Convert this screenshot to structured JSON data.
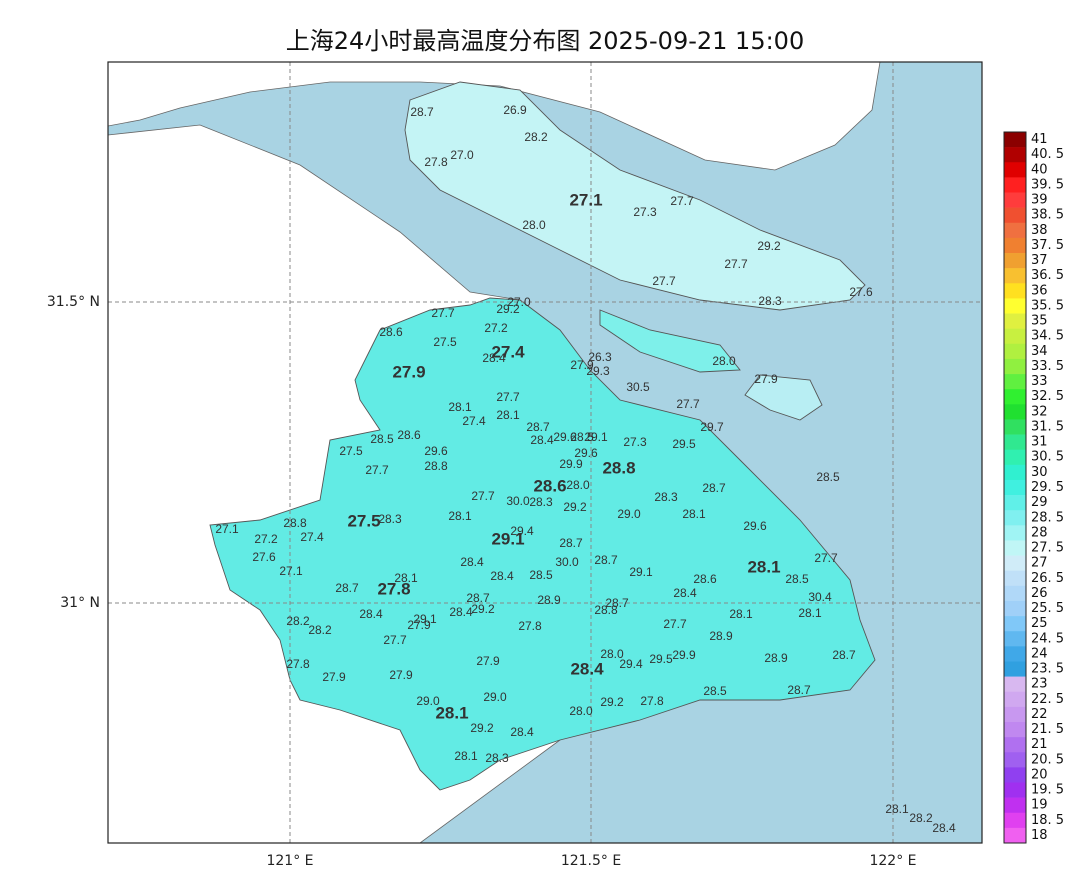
{
  "title": "上海24小时最高温度分布图 2025-09-21 15:00",
  "axes": {
    "x_labels": [
      "121° E",
      "121.5° E",
      "122° E"
    ],
    "y_labels": [
      "31.5° N",
      "31° N"
    ]
  },
  "stations": [
    "28.7",
    "26.9",
    "28.2",
    "27.0",
    "27.8",
    "27.1",
    "27.3",
    "27.7",
    "28.0",
    "29.2",
    "27.7",
    "27.7",
    "28.3",
    "27.6",
    "27.0",
    "29.2",
    "27.7",
    "28.6",
    "27.2",
    "27.5",
    "27.4",
    "28.4",
    "26.3",
    "27.9",
    "29.3",
    "28.0",
    "27.9",
    "30.5",
    "27.9",
    "27.7",
    "28.1",
    "28.1",
    "27.4",
    "27.7",
    "29.7",
    "28.7",
    "28.5",
    "28.6",
    "28.4",
    "29.6",
    "28.5",
    "29.1",
    "27.3",
    "29.5",
    "27.5",
    "29.6",
    "29.6",
    "29.9",
    "28.8",
    "27.7",
    "28.8",
    "28.0",
    "28.6",
    "28.5",
    "28.7",
    "27.7",
    "30.0",
    "28.3",
    "28.3",
    "29.2",
    "29.0",
    "28.1",
    "28.1",
    "27.5",
    "28.3",
    "27.1",
    "28.8",
    "29.6",
    "29.4",
    "27.2",
    "27.4",
    "29.1",
    "28.7",
    "27.6",
    "28.4",
    "28.7",
    "27.7",
    "30.0",
    "27.1",
    "28.1",
    "28.5",
    "28.4",
    "29.1",
    "28.6",
    "28.5",
    "28.1",
    "27.8",
    "28.7",
    "28.4",
    "30.4",
    "28.9",
    "28.7",
    "28.7",
    "29.2",
    "28.4",
    "28.8",
    "28.1",
    "28.1",
    "28.4",
    "29.1",
    "27.9",
    "28.2",
    "28.2",
    "27.8",
    "27.7",
    "28.9",
    "27.7",
    "28.0",
    "29.9",
    "29.4",
    "29.5",
    "28.4",
    "28.9",
    "28.7",
    "27.9",
    "27.8",
    "27.9",
    "27.9",
    "29.0",
    "29.0",
    "28.5",
    "28.7",
    "29.2",
    "27.8",
    "28.1",
    "28.0",
    "29.2",
    "28.4",
    "28.1",
    "28.3",
    "28.1",
    "28.2",
    "28.4"
  ],
  "colorbar": {
    "labels": [
      "41",
      "40. 5",
      "40",
      "39. 5",
      "39",
      "38. 5",
      "38",
      "37. 5",
      "37",
      "36. 5",
      "36",
      "35. 5",
      "35",
      "34. 5",
      "34",
      "33. 5",
      "33",
      "32. 5",
      "32",
      "31. 5",
      "31",
      "30. 5",
      "30",
      "29. 5",
      "29",
      "28. 5",
      "28",
      "27. 5",
      "27",
      "26. 5",
      "26",
      "25. 5",
      "25",
      "24. 5",
      "24",
      "23. 5",
      "23",
      "22. 5",
      "22",
      "21. 5",
      "21",
      "20. 5",
      "20",
      "19. 5",
      "19",
      "18. 5",
      "18"
    ],
    "colors": [
      "#8b0000",
      "#b00000",
      "#e00000",
      "#ff2020",
      "#ff3c3c",
      "#f05030",
      "#f07040",
      "#f08030",
      "#f0a030",
      "#f8c030",
      "#ffe020",
      "#ffff30",
      "#e0f040",
      "#c8f040",
      "#b0f040",
      "#90f040",
      "#60f040",
      "#30f030",
      "#20e030",
      "#30e060",
      "#30e890",
      "#30f0b0",
      "#30f0d0",
      "#40f0e0",
      "#60f0e8",
      "#80f0f0",
      "#a0f4f4",
      "#c0f6f6",
      "#d0ecf8",
      "#c0e0f8",
      "#b0d8f8",
      "#a0d0f8",
      "#80c8f8",
      "#60b8f0",
      "#40a8e8",
      "#30a0e0",
      "#d8b8f0",
      "#d0a8f0",
      "#c898f0",
      "#c088f0",
      "#b070f0",
      "#a060f0",
      "#9040f0",
      "#a030f0",
      "#c030f0",
      "#e040f0",
      "#f060f0"
    ]
  }
}
